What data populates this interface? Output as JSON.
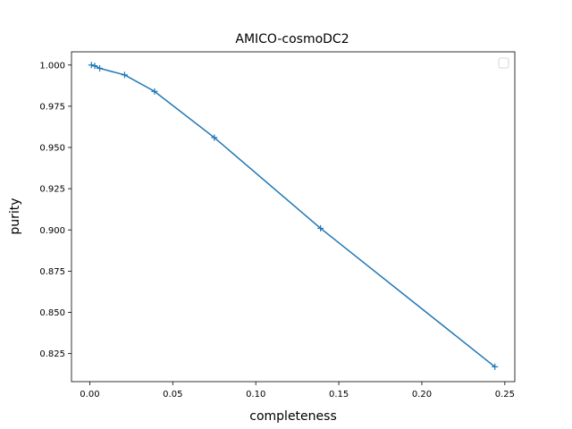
{
  "chart_data": {
    "type": "line",
    "title": "AMICO-cosmoDC2",
    "xlabel": "completeness",
    "ylabel": "purity",
    "xlim": [
      -0.011,
      0.256
    ],
    "ylim": [
      0.808,
      1.008
    ],
    "x_ticks": [
      0.0,
      0.05,
      0.1,
      0.15,
      0.2,
      0.25
    ],
    "x_tick_labels": [
      "0.00",
      "0.05",
      "0.10",
      "0.15",
      "0.20",
      "0.25"
    ],
    "y_ticks": [
      0.825,
      0.85,
      0.875,
      0.9,
      0.925,
      0.95,
      0.975,
      1.0
    ],
    "y_tick_labels": [
      "0.825",
      "0.850",
      "0.875",
      "0.900",
      "0.925",
      "0.950",
      "0.975",
      "1.000"
    ],
    "grid": false,
    "legend": "top-right (empty)",
    "series": [
      {
        "color": "#1f77b4",
        "marker": "plus",
        "x": [
          0.001,
          0.003,
          0.006,
          0.021,
          0.039,
          0.075,
          0.139,
          0.244
        ],
        "y": [
          1.0,
          0.9995,
          0.998,
          0.994,
          0.984,
          0.956,
          0.901,
          0.817
        ]
      }
    ]
  }
}
